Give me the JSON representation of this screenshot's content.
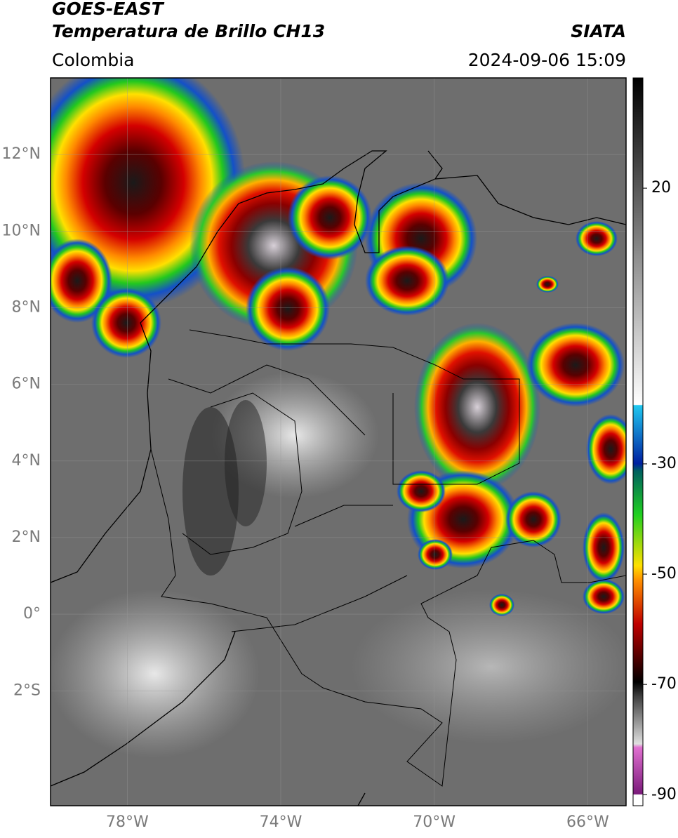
{
  "header": {
    "title": "GOES-EAST",
    "subtitle": "Temperatura de Brillo CH13",
    "source": "SIATA",
    "region": "Colombia",
    "timestamp": "2024-09-06 15:09"
  },
  "map": {
    "xlim": [
      -80,
      -65
    ],
    "ylim": [
      -5,
      14
    ],
    "xticks": [
      {
        "value": -78,
        "label": "78°W"
      },
      {
        "value": -74,
        "label": "74°W"
      },
      {
        "value": -70,
        "label": "70°W"
      },
      {
        "value": -66,
        "label": "66°W"
      }
    ],
    "yticks": [
      {
        "value": 12,
        "label": "12°N"
      },
      {
        "value": 10,
        "label": "10°N"
      },
      {
        "value": 8,
        "label": "8°N"
      },
      {
        "value": 6,
        "label": "6°N"
      },
      {
        "value": 4,
        "label": "4°N"
      },
      {
        "value": 2,
        "label": "2°N"
      },
      {
        "value": 0,
        "label": "0°"
      },
      {
        "value": -2,
        "label": "2°S"
      }
    ],
    "grid": true
  },
  "colorbar": {
    "lim": [
      -92,
      40
    ],
    "ticks": [
      20,
      -30,
      -50,
      -70,
      -90
    ]
  }
}
